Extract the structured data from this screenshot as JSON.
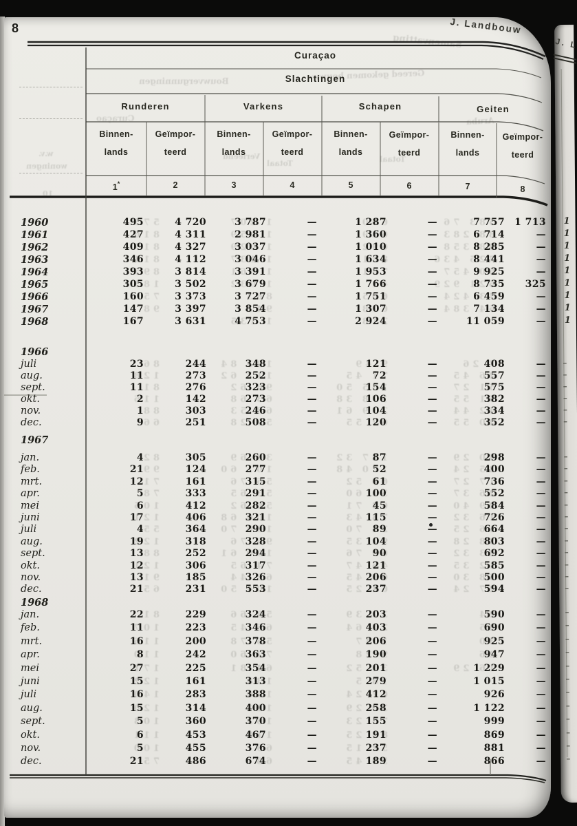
{
  "page_number": "8",
  "section_title": "J. Landbouw",
  "adjacent_page_title": "J. L",
  "table": {
    "region": "Curaçao",
    "title": "Slachtingen",
    "groups": [
      "Runderen",
      "Varkens",
      "Schapen",
      "Geiten"
    ],
    "subheaders": [
      [
        "Binnen-",
        "lands"
      ],
      [
        "Geïmpor-",
        "teerd"
      ],
      [
        "Binnen-",
        "lands"
      ],
      [
        "Geïmpor-",
        "teerd"
      ],
      [
        "Binnen-",
        "lands"
      ],
      [
        "Geïmpor-",
        "teerd"
      ],
      [
        "Binnen-",
        "lands"
      ],
      [
        "Geïmpor-",
        "teerd"
      ]
    ],
    "col_numbers": [
      "1*",
      "2",
      "3",
      "4",
      "5",
      "6",
      "7",
      "8"
    ],
    "sections": [
      {
        "label": "",
        "kind": "year",
        "rows": [
          {
            "label": "1960",
            "values": [
              "495",
              "4 720",
              "3 787",
              "—",
              "1 287",
              "—",
              "7 757",
              "1 713"
            ],
            "ghosts": [
              "575",
              "1 207",
              "660",
              "583 76"
            ]
          },
          {
            "label": "1961",
            "values": [
              "427",
              "4 311",
              "2 981",
              "—",
              "1 360",
              "—",
              "6 714",
              "—"
            ],
            "ghosts": [
              "816",
              "1 059",
              "649",
              "88 283"
            ]
          },
          {
            "label": "1962",
            "values": [
              "409",
              "4 327",
              "3 037",
              "—",
              "1 010",
              "—",
              "8 285",
              "—"
            ],
            "ghosts": [
              "817",
              "1 029",
              "692",
              "88 358"
            ]
          },
          {
            "label": "1963",
            "values": [
              "346",
              "4 112",
              "3 046",
              "—",
              "1 634",
              "—",
              "8 441",
              "—"
            ],
            "ghosts": [
              "811",
              "1 137",
              "881",
              "725 436"
            ]
          },
          {
            "label": "1964",
            "values": [
              "393",
              "3 814",
              "3 391",
              "—",
              "1 953",
              "—",
              "9 925",
              "—"
            ],
            "ghosts": [
              "895",
              "1 061",
              "781",
              "60 457"
            ]
          },
          {
            "label": "1965",
            "values": [
              "305",
              "3 502",
              "3 679",
              "—",
              "1 766",
              "—",
              "8 735",
              "325"
            ],
            "ghosts": [
              "183",
              "1 032",
              "41",
              "621 929"
            ]
          },
          {
            "label": "1966",
            "values": [
              "160",
              "3 373",
              "3 727",
              "—",
              "1 751",
              "—",
              "6 459",
              "—"
            ],
            "ghosts": [
              "75",
              "883",
              "605",
              "73 424"
            ]
          },
          {
            "label": "1967",
            "values": [
              "147",
              "3 397",
              "3 854",
              "—",
              "1 307",
              "—",
              "7 134",
              "—"
            ],
            "ghosts": [
              "98",
              "942",
              "618",
              "64 384"
            ]
          },
          {
            "label": "1968",
            "values": [
              "167",
              "3 631",
              "4 753",
              "—",
              "2 924",
              "—",
              "11 059",
              "—"
            ],
            "ghosts": [
              "",
              "1 135",
              "218",
              ""
            ]
          }
        ]
      },
      {
        "label": "1966",
        "kind": "month",
        "rows": [
          {
            "label": "juli",
            "values": [
              "23",
              "244",
              "348",
              "—",
              "121",
              "—",
              "408",
              "—"
            ],
            "ghosts": [
              "86",
              "123 84",
              "9 49",
              "7 26"
            ]
          },
          {
            "label": "aug.",
            "values": [
              "11",
              "273",
              "252",
              "—",
              "72",
              "—",
              "557",
              "—"
            ],
            "ghosts": [
              "128",
              "112 62",
              "71 45",
              "26 45"
            ]
          },
          {
            "label": "sept.",
            "values": [
              "11",
              "276",
              "323",
              "—",
              "154",
              "—",
              "575",
              "—"
            ],
            "ghosts": [
              "81",
              "98 62",
              "135 50",
              "51 27"
            ]
          },
          {
            "label": "okt.",
            "values": [
              "2",
              "142",
              "273",
              "—",
              "106",
              "—",
              "382",
              "—"
            ],
            "ghosts": [
              "116",
              "63 68",
              "178 38",
              "51 55"
            ]
          },
          {
            "label": "nov.",
            "values": [
              "1",
              "303",
              "246",
              "—",
              "104",
              "—",
              "334",
              "—"
            ],
            "ghosts": [
              "88",
              "68 53",
              "239 61",
              "42 44"
            ]
          },
          {
            "label": "dec.",
            "values": [
              "9",
              "251",
              "508",
              "—",
              "120",
              "—",
              "352",
              "—"
            ],
            "ghosts": [
              "66",
              "59 28",
              "62 55",
              "20 55"
            ]
          }
        ]
      },
      {
        "label": "1967",
        "kind": "month",
        "rows": [
          {
            "label": "jan.",
            "values": [
              "4",
              "305",
              "260",
              "—",
              "87",
              "—",
              "298",
              "—"
            ],
            "ghosts": [
              "82",
              "30 69",
              "127 32",
              "40 29"
            ]
          },
          {
            "label": "feb.",
            "values": [
              "21",
              "124",
              "277",
              "—",
              "52",
              "—",
              "400",
              "—"
            ],
            "ghosts": [
              "99",
              "101 60",
              "170 48",
              "25 24"
            ]
          },
          {
            "label": "mrt.",
            "values": [
              "12",
              "161",
              "315",
              "—",
              "61",
              "—",
              "736",
              "—"
            ],
            "ghosts": [
              "71",
              "56 76",
              "60 52",
              "17 27"
            ]
          },
          {
            "label": "apr.",
            "values": [
              "5",
              "333",
              "291",
              "—",
              "100",
              "—",
              "552",
              "—"
            ],
            "ghosts": [
              "78",
              "53 65",
              "54 60",
              "26 37"
            ]
          },
          {
            "label": "mei",
            "values": [
              "6",
              "412",
              "282",
              "—",
              "45",
              "—",
              "584",
              "—"
            ],
            "ghosts": [
              "105",
              "56 62",
              "63 71",
              "29 40"
            ]
          },
          {
            "label": "juni",
            "values": [
              "17",
              "406",
              "321",
              "—",
              "115",
              "—",
              "726",
              "—"
            ],
            "ghosts": [
              "121",
              "106 68",
              "73 43",
              "16 32"
            ]
          },
          {
            "label": "juli",
            "values": [
              "4",
              "364",
              "290",
              "—",
              "89",
              "—",
              "664",
              "—"
            ],
            "ghosts": [
              "55",
              "108 70",
              "24 70",
              "16 25"
            ]
          },
          {
            "label": "aug.",
            "values": [
              "19",
              "318",
              "328",
              "—",
              "104",
              "—",
              "803",
              "—"
            ],
            "ghosts": [
              "122",
              "96 76",
              "92 35",
              "38 28"
            ]
          },
          {
            "label": "sept.",
            "values": [
              "13",
              "252",
              "294",
              "—",
              "90",
              "—",
              "692",
              "—"
            ],
            "ghosts": [
              "88",
              "100 61",
              "69 76",
              "23 32"
            ]
          },
          {
            "label": "okt.",
            "values": [
              "12",
              "306",
              "317",
              "—",
              "121",
              "—",
              "585",
              "—"
            ],
            "ghosts": [
              "121",
              "74 65",
              "46 47",
              "12 35"
            ]
          },
          {
            "label": "nov.",
            "values": [
              "13",
              "185",
              "326",
              "—",
              "206",
              "—",
              "500",
              "—"
            ],
            "ghosts": [
              "91",
              "62 44",
              "66 45",
              "58 30"
            ]
          },
          {
            "label": "dec.",
            "values": [
              "21",
              "231",
              "553",
              "—",
              "237",
              "—",
              "594",
              "—"
            ],
            "ghosts": [
              "65",
              "104 50",
              "64 25",
              "27 24"
            ]
          }
        ]
      },
      {
        "label": "1968",
        "kind": "month",
        "rows": [
          {
            "label": "jan.",
            "values": [
              "22",
              "229",
              "324",
              "—",
              "203",
              "—",
              "590",
              "—"
            ],
            "ghosts": [
              "81",
              "58 66",
              "32 39",
              "24"
            ]
          },
          {
            "label": "feb.",
            "values": [
              "11",
              "223",
              "346",
              "—",
              "403",
              "—",
              "690",
              "—"
            ],
            "ghosts": [
              "107",
              "66 45",
              "24 64",
              "25"
            ]
          },
          {
            "label": "mrt.",
            "values": [
              "16",
              "200",
              "378",
              "—",
              "206",
              "—",
              "925",
              "—"
            ],
            "ghosts": [
              "116",
              "56 78",
              "1 47",
              "30"
            ]
          },
          {
            "label": "apr.",
            "values": [
              "8",
              "242",
              "363",
              "—",
              "190",
              "—",
              "947",
              "—"
            ],
            "ghosts": [
              "110",
              "72 60",
              "9 28",
              "26"
            ]
          },
          {
            "label": "mei",
            "values": [
              "27",
              "225",
              "354",
              "—",
              "201",
              "—",
              "1 229",
              "—"
            ],
            "ghosts": [
              "171",
              "64 81",
              "34 52",
              "16 29"
            ]
          },
          {
            "label": "juni",
            "values": [
              "15",
              "161",
              "313",
              "—",
              "279",
              "—",
              "1 015",
              "—"
            ],
            "ghosts": [
              "122",
              "138",
              "18 5",
              ""
            ]
          },
          {
            "label": "juli",
            "values": [
              "16",
              "283",
              "388",
              "—",
              "412",
              "—",
              "926",
              "—"
            ],
            "ghosts": [
              "140",
              "156",
              "67 24",
              ""
            ]
          },
          {
            "label": "aug.",
            "values": [
              "15",
              "314",
              "400",
              "—",
              "258",
              "—",
              "1 122",
              "—"
            ],
            "ghosts": [
              "120",
              "111",
              "30 29",
              ""
            ]
          },
          {
            "label": "sept.",
            "values": [
              "5",
              "360",
              "370",
              "—",
              "155",
              "—",
              "999",
              "—"
            ],
            "ghosts": [
              "103",
              "163",
              "75 23",
              ""
            ]
          },
          {
            "label": "okt.",
            "values": [
              "6",
              "453",
              "467",
              "—",
              "191",
              "—",
              "869",
              "—"
            ],
            "ghosts": [
              "111",
              "118",
              "84 25",
              ""
            ]
          },
          {
            "label": "nov.",
            "values": [
              "5",
              "455",
              "376",
              "—",
              "237",
              "—",
              "881",
              "—"
            ],
            "ghosts": [
              "100",
              "69",
              "52 15",
              ""
            ]
          },
          {
            "label": "dec.",
            "values": [
              "21",
              "486",
              "674",
              "—",
              "189",
              "—",
              "866",
              "—"
            ],
            "ghosts": [
              "75",
              "68",
              "59 45",
              ""
            ]
          }
        ]
      }
    ]
  },
  "bleedthrough": {
    "header_words": [
      "Samenvatting",
      "Bouwvergunningen",
      "Gereed gekomen bouww",
      "Curaçao",
      "Aruba",
      "Verleend",
      "Totaal",
      "Totaal",
      "w.v.",
      "woningen",
      "10"
    ]
  },
  "adjacent_page": {
    "year_digits": [
      "1",
      "1",
      "1",
      "1",
      "1",
      "1",
      "1",
      "1",
      "1"
    ],
    "month_dash_counts": [
      6,
      12,
      12
    ]
  }
}
